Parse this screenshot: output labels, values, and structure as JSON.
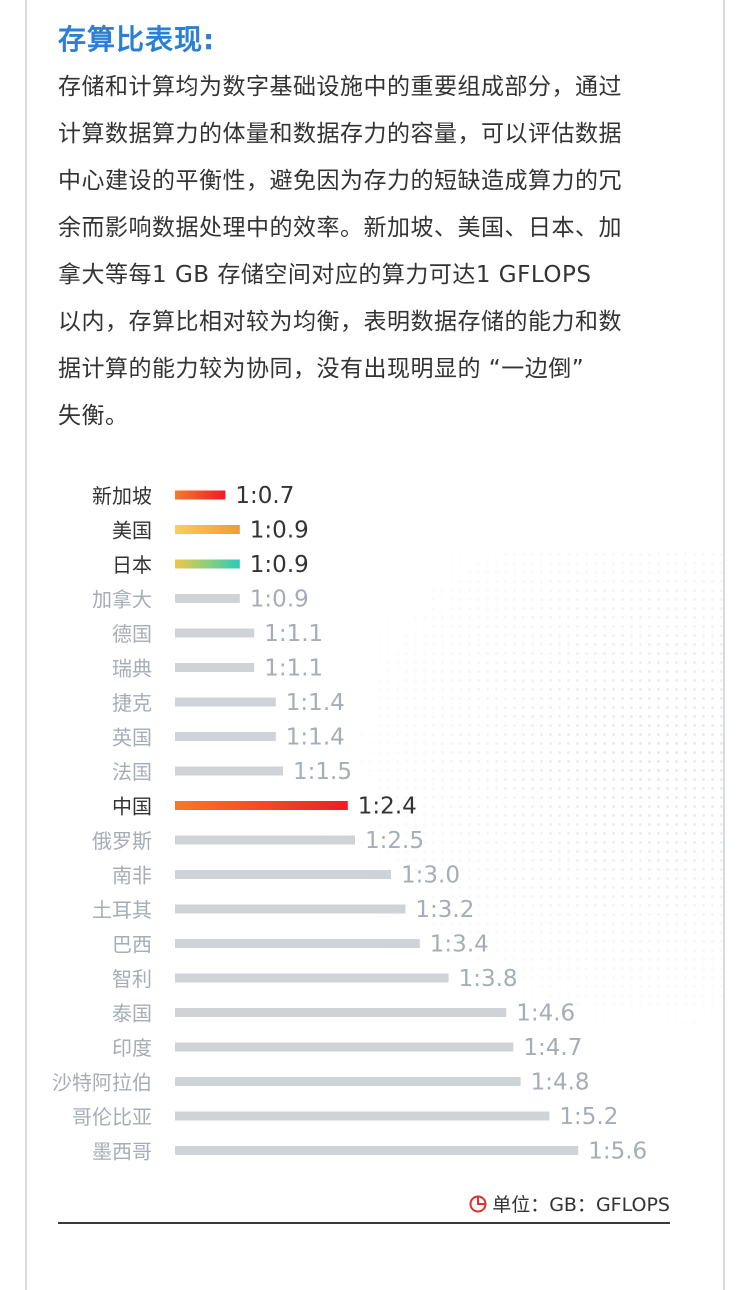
{
  "section": {
    "title": "存算比表现:",
    "paragraph_lines": [
      "存储和计算均为数字基础设施中的重要组成部分，通过",
      "计算数据算力的体量和数据存力的容量，可以评估数据",
      "中心建设的平衡性，避免因为存力的短缺造成算力的冗",
      "余而影响数据处理中的效率。新加坡、美国、日本、加",
      "拿大等每1 GB 存储空间对应的算力可达1 GFLOPS",
      "以内，存算比相对较为均衡，表明数据存储的能力和数",
      "据计算的能力较为协同，没有出现明显的 “一边倒”",
      "失衡。"
    ]
  },
  "chart_data": {
    "type": "bar",
    "orientation": "horizontal",
    "categories": [
      "新加坡",
      "美国",
      "日本",
      "加拿大",
      "德国",
      "瑞典",
      "捷克",
      "英国",
      "法国",
      "中国",
      "俄罗斯",
      "南非",
      "土耳其",
      "巴西",
      "智利",
      "泰国",
      "印度",
      "沙特阿拉伯",
      "哥伦比亚",
      "墨西哥"
    ],
    "values": [
      0.7,
      0.9,
      0.9,
      0.9,
      1.1,
      1.1,
      1.4,
      1.4,
      1.5,
      2.4,
      2.5,
      3.0,
      3.2,
      3.4,
      3.8,
      4.6,
      4.7,
      4.8,
      5.2,
      5.6
    ],
    "value_labels": [
      "1:0.7",
      "1:0.9",
      "1:0.9",
      "1:0.9",
      "1:1.1",
      "1:1.1",
      "1:1.4",
      "1:1.4",
      "1:1.5",
      "1:2.4",
      "1:2.5",
      "1:3.0",
      "1:3.2",
      "1:3.4",
      "1:3.8",
      "1:4.6",
      "1:4.7",
      "1:4.8",
      "1:5.2",
      "1:5.6"
    ],
    "highlighted": [
      "新加坡",
      "美国",
      "日本",
      "中国"
    ],
    "xlim": [
      0,
      6
    ],
    "grid": false,
    "legend": "none",
    "unit_note": "单位：GB：GFLOPS",
    "colors": {
      "default_bar": "#cfd3d8",
      "default_text": "#a7adb5",
      "highlight_text": "#333333",
      "新加坡": [
        "#f47a2a",
        "#ee1c25"
      ],
      "美国": [
        "#f5d15a",
        "#f49a32"
      ],
      "日本": [
        "#f2c44a",
        "#8ccf7a",
        "#2ec9b8"
      ],
      "中国": [
        "#f47a2a",
        "#ee1c25"
      ],
      "unit_icon": "#e23030"
    }
  }
}
